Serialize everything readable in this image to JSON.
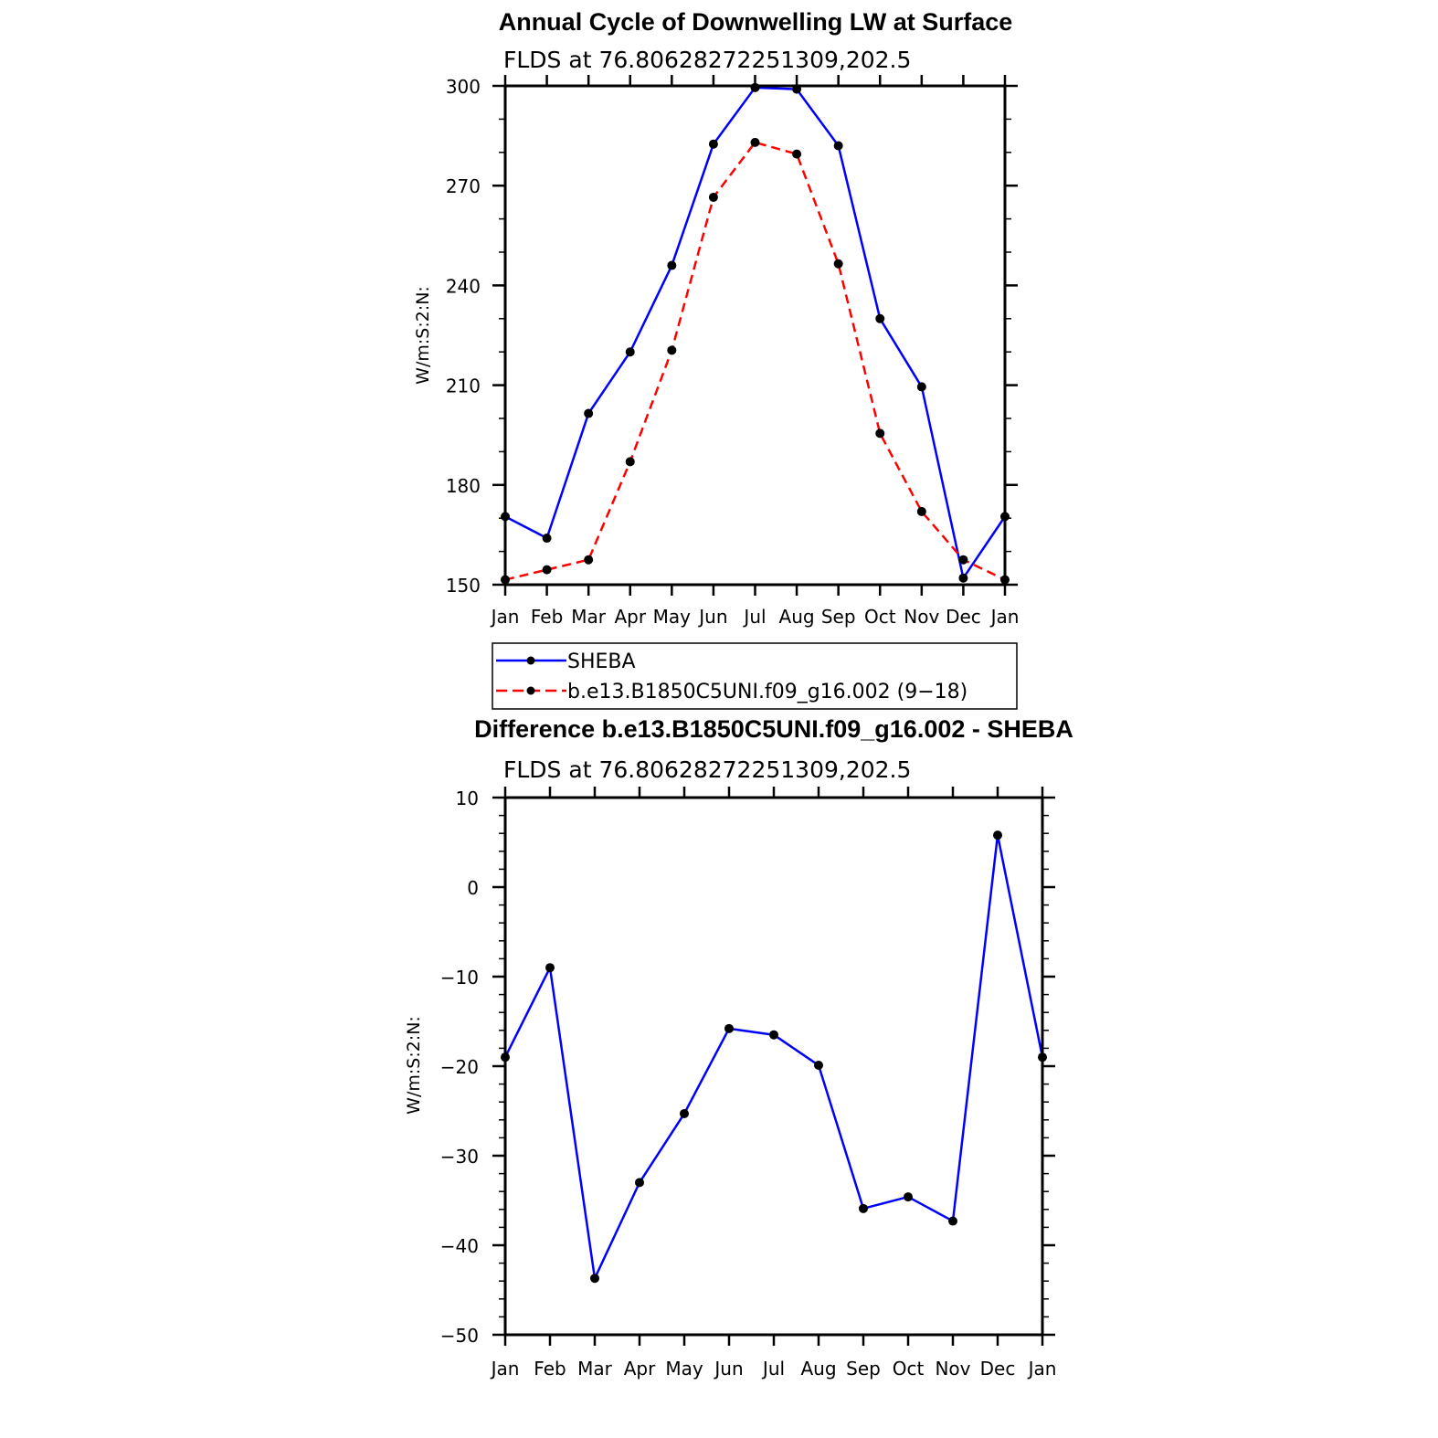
{
  "colors": {
    "sheba": "#0000ff",
    "model": "#ff0000",
    "marker": "#000000",
    "axes": "#000000",
    "background": "#ffffff"
  },
  "chart_data": [
    {
      "type": "line",
      "title": "Annual Cycle of Downwelling LW at Surface",
      "subtitle": "FLDS at 76.80628272251309,202.5",
      "xlabel": "",
      "ylabel": "W/m:S:2:N:",
      "categories": [
        "Jan",
        "Feb",
        "Mar",
        "Apr",
        "May",
        "Jun",
        "Jul",
        "Aug",
        "Sep",
        "Oct",
        "Nov",
        "Dec",
        "Jan"
      ],
      "ylim": [
        150,
        300
      ],
      "yticks": [
        150,
        180,
        210,
        240,
        270,
        300
      ],
      "ytick_labels": [
        "150",
        "180",
        "210",
        "240",
        "270",
        "300"
      ],
      "legend_position": "bottom",
      "series": [
        {
          "name": "SHEBA",
          "style": "solid",
          "color": "#0000ff",
          "values": [
            170.5,
            164,
            201.5,
            220,
            246,
            282.5,
            299.5,
            299,
            282,
            230,
            209.5,
            152,
            170.5
          ]
        },
        {
          "name": "b.e13.B1850C5UNI.f09_g16.002 (9−18)",
          "style": "dashed",
          "color": "#ff0000",
          "values": [
            151.5,
            154.5,
            157.5,
            187,
            220.5,
            266.5,
            283,
            279.5,
            246.5,
            195.5,
            172,
            157.5,
            151.5
          ]
        }
      ]
    },
    {
      "type": "line",
      "title": "Difference b.e13.B1850C5UNI.f09_g16.002 - SHEBA",
      "subtitle": "FLDS at 76.80628272251309,202.5",
      "xlabel": "",
      "ylabel": "W/m:S:2:N:",
      "categories": [
        "Jan",
        "Feb",
        "Mar",
        "Apr",
        "May",
        "Jun",
        "Jul",
        "Aug",
        "Sep",
        "Oct",
        "Nov",
        "Dec",
        "Jan"
      ],
      "ylim": [
        -50,
        10
      ],
      "yticks": [
        -50,
        -40,
        -30,
        -20,
        -10,
        0,
        10
      ],
      "ytick_labels": [
        "−50",
        "−40",
        "−30",
        "−20",
        "−10",
        "0",
        "10"
      ],
      "series": [
        {
          "style": "solid",
          "color": "#0000ff",
          "values": [
            -19,
            -9,
            -43.7,
            -33,
            -25.3,
            -15.8,
            -16.5,
            -19.9,
            -35.9,
            -34.6,
            -37.3,
            5.8,
            -19
          ]
        }
      ]
    }
  ]
}
